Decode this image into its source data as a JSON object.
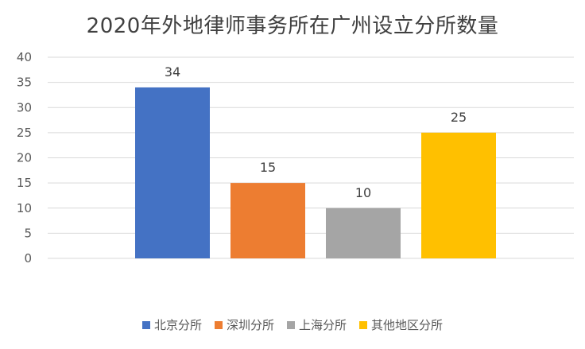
{
  "chart_data": {
    "type": "bar",
    "title": "2020年外地律师事务所在广州设立分所数量",
    "categories": [
      "北京分所",
      "深圳分所",
      "上海分所",
      "其他地区分所"
    ],
    "values": [
      34,
      15,
      10,
      25
    ],
    "colors": [
      "#4472C4",
      "#ED7D31",
      "#A5A5A5",
      "#FFC000"
    ],
    "ylim": [
      0,
      40
    ],
    "yticks": [
      0,
      5,
      10,
      15,
      20,
      25,
      30,
      35,
      40
    ],
    "grid": true,
    "legend_position": "bottom",
    "xlabel": "",
    "ylabel": ""
  }
}
